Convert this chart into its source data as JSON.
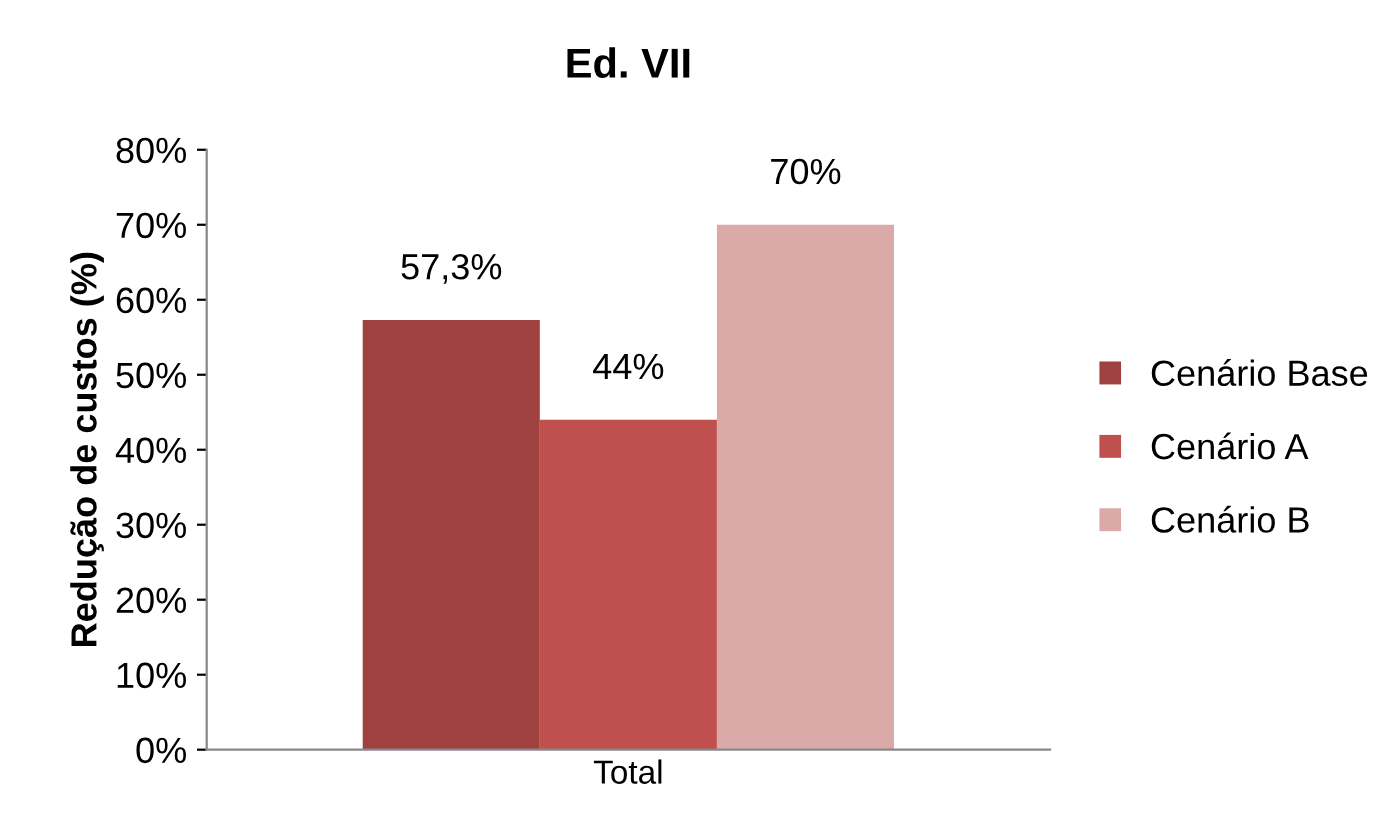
{
  "chart_data": {
    "type": "bar",
    "title": "Ed. VII",
    "ylabel": "Redução de custos (%)",
    "categories": [
      "Total"
    ],
    "series": [
      {
        "name": "Cenário Base",
        "color": "#9e413f",
        "values": [
          57.3
        ],
        "value_labels": [
          "57,3%"
        ]
      },
      {
        "name": "Cenário A",
        "color": "#c0504d",
        "values": [
          44
        ],
        "value_labels": [
          "44%"
        ]
      },
      {
        "name": "Cenário B",
        "color": "#dba9a8",
        "values": [
          70
        ],
        "value_labels": [
          "70%"
        ]
      }
    ],
    "ylim": [
      0,
      80
    ],
    "yticks": [
      {
        "value": 0,
        "label": "0%"
      },
      {
        "value": 10,
        "label": "10%"
      },
      {
        "value": 20,
        "label": "20%"
      },
      {
        "value": 30,
        "label": "30%"
      },
      {
        "value": 40,
        "label": "40%"
      },
      {
        "value": 50,
        "label": "50%"
      },
      {
        "value": 60,
        "label": "60%"
      },
      {
        "value": 70,
        "label": "70%"
      },
      {
        "value": 80,
        "label": "80%"
      }
    ],
    "legend": "right",
    "grid": false
  }
}
